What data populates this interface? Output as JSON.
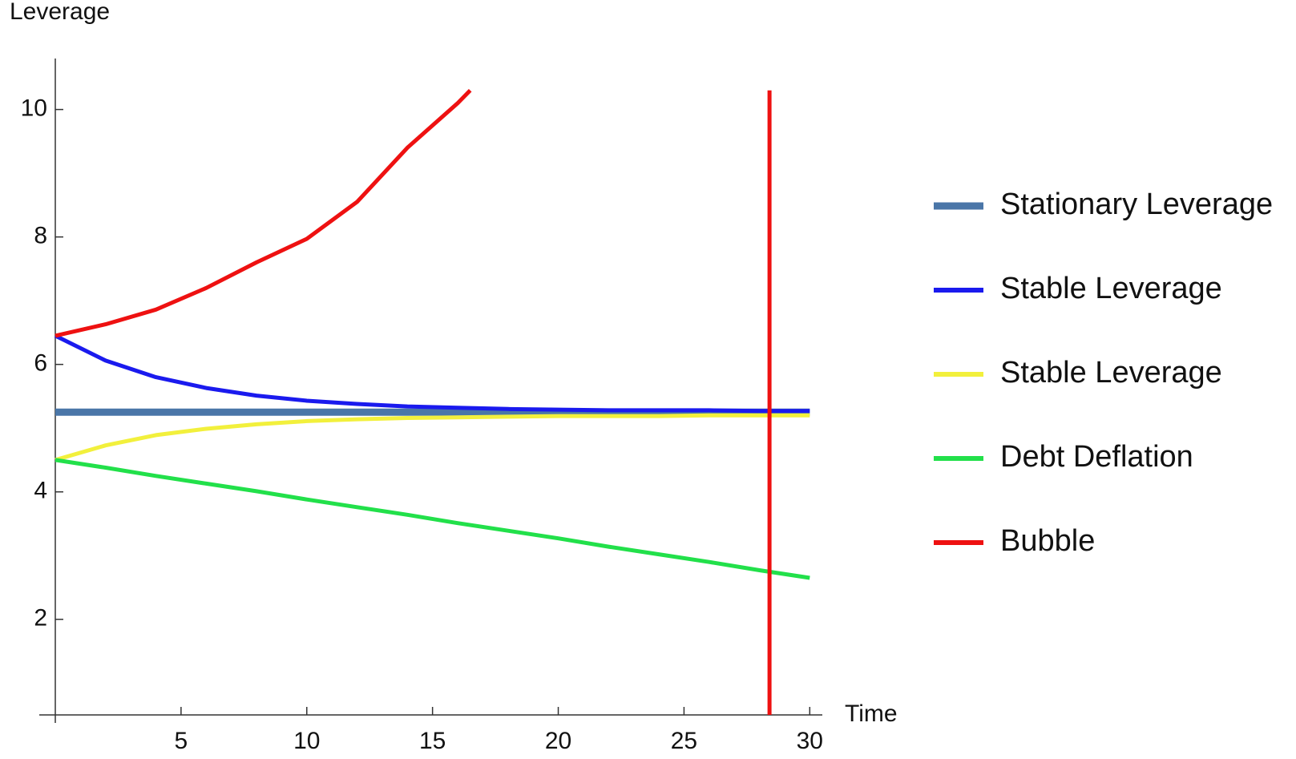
{
  "chart_data": {
    "type": "line",
    "y_label": "Leverage",
    "x_label": "Time",
    "xlim": [
      0,
      30.5
    ],
    "ylim": [
      0.5,
      10.8
    ],
    "xticks": [
      5,
      10,
      15,
      20,
      25,
      30
    ],
    "yticks": [
      2,
      4,
      6,
      8,
      10
    ],
    "series": [
      {
        "name": "Stationary Leverage",
        "color": "#4a76a8",
        "x": [
          0,
          30
        ],
        "values": [
          5.25,
          5.25
        ]
      },
      {
        "name": "Stable Leverage",
        "color": "#1a1aee",
        "x": [
          0,
          2,
          4,
          6,
          8,
          10,
          12,
          14,
          16,
          18,
          20,
          22,
          24,
          26,
          28,
          30
        ],
        "values": [
          6.45,
          6.06,
          5.8,
          5.63,
          5.51,
          5.43,
          5.38,
          5.34,
          5.32,
          5.3,
          5.29,
          5.28,
          5.28,
          5.28,
          5.27,
          5.27
        ]
      },
      {
        "name": "Stable Leverage",
        "color": "#f2f03c",
        "x": [
          0,
          2,
          4,
          6,
          8,
          10,
          12,
          14,
          16,
          18,
          20,
          22,
          24,
          26,
          28,
          30
        ],
        "values": [
          4.5,
          4.73,
          4.89,
          4.99,
          5.06,
          5.11,
          5.14,
          5.16,
          5.17,
          5.18,
          5.19,
          5.19,
          5.19,
          5.2,
          5.2,
          5.2
        ]
      },
      {
        "name": "Debt Deflation",
        "color": "#22e04a",
        "x": [
          0,
          2,
          4,
          6,
          8,
          10,
          12,
          14,
          16,
          18,
          20,
          22,
          24,
          26,
          28,
          30
        ],
        "values": [
          4.5,
          4.38,
          4.25,
          4.13,
          4.01,
          3.88,
          3.76,
          3.64,
          3.51,
          3.39,
          3.27,
          3.14,
          3.02,
          2.9,
          2.77,
          2.65
        ]
      },
      {
        "name": "Bubble",
        "color": "#ee1111",
        "x": [
          0,
          2,
          4,
          6,
          8,
          10,
          12,
          14,
          16,
          16.5
        ],
        "values": [
          6.45,
          6.63,
          6.86,
          7.2,
          7.6,
          7.97,
          8.55,
          9.4,
          10.1,
          10.3
        ]
      }
    ],
    "vertical_line": {
      "x": 28.4,
      "y": [
        0.5,
        10.3
      ],
      "color": "#ee1111"
    }
  }
}
